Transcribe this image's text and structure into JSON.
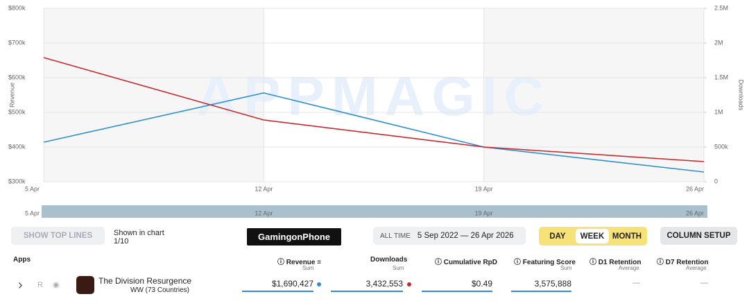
{
  "chart_data": {
    "type": "line",
    "watermark": "APPMAGIC",
    "y_label": "Revenue",
    "y2_label": "Downloads",
    "categories": [
      "5 Apr",
      "12 Apr",
      "19 Apr",
      "26 Apr"
    ],
    "series": [
      {
        "name": "Revenue",
        "color": "#2e8fd0",
        "values": [
          414000,
          556000,
          400000,
          328000
        ]
      },
      {
        "name": "Downloads",
        "color": "#c8282d",
        "axis": "y2",
        "values": [
          1790000,
          890000,
          500000,
          290000
        ]
      }
    ],
    "ylim": [
      300000,
      800000
    ],
    "yticks": [
      {
        "value": 300000,
        "label": "$300k"
      },
      {
        "value": 400000,
        "label": "$400k"
      },
      {
        "value": 500000,
        "label": "$500k"
      },
      {
        "value": 600000,
        "label": "$600k"
      },
      {
        "value": 700000,
        "label": "$700k"
      },
      {
        "value": 800000,
        "label": "$800k"
      }
    ],
    "y2lim": [
      0,
      2500000
    ],
    "y2ticks": [
      0,
      {
        "value": 500000,
        "label": "500k"
      },
      {
        "value": 1000000,
        "label": "1M"
      },
      {
        "value": 1500000,
        "label": "1.5M"
      },
      {
        "value": 2000000,
        "label": "2M"
      },
      {
        "value": 2500000,
        "label": "2.5M"
      }
    ],
    "grid": true
  },
  "toolbar": {
    "show_top_lines": "SHOW TOP LINES",
    "shown_in_chart": "Shown in chart",
    "shown_count": "1/10",
    "logo": "GamingonPhone",
    "period": "ALL TIME",
    "date_range": "5 Sep 2022 — 26 Apr 2026",
    "granularity": [
      "DAY",
      "WEEK",
      "MONTH"
    ],
    "column_setup": "COLUMN SETUP"
  },
  "table": {
    "apps_header": "Apps",
    "sum": "Sum",
    "average": "Average",
    "cumulative_rpd": "Cumulative RpD",
    "featuring_score": "Featuring Score",
    "d1_retention": "D1 Retention",
    "d7_retention": "D7 Retention",
    "row": {
      "badge": "R",
      "name": "The Division Resurgence",
      "region": "WW (73 Countries)",
      "revenue": "$1,690,427",
      "downloads": "3,432,553",
      "rpd": "$0.49",
      "featuring": "3,575,888",
      "d1": "—",
      "d7": "—"
    }
  }
}
